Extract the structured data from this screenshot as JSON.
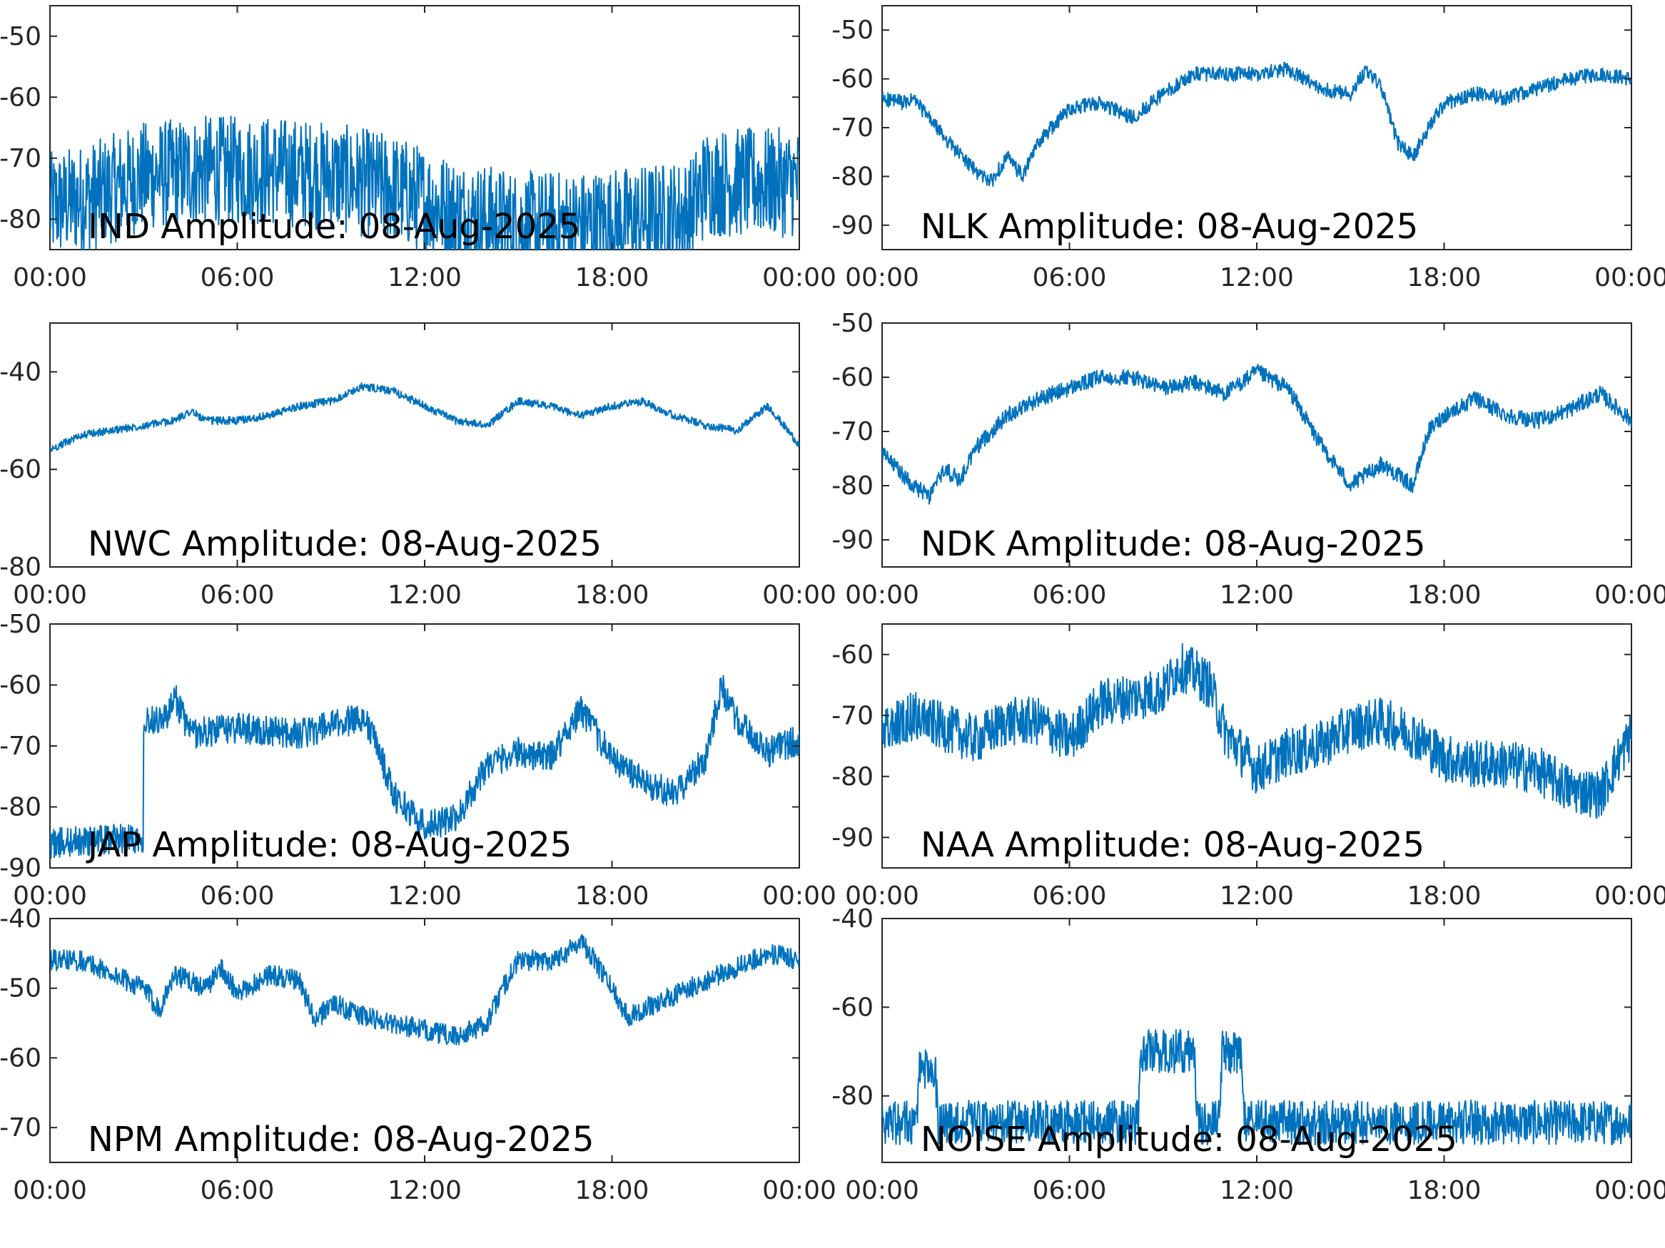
{
  "chart_data": [
    {
      "type": "line",
      "title": "IND Amplitude: 08-Aug-2025",
      "x_tick_labels": [
        "00:00",
        "06:00",
        "12:00",
        "18:00",
        "00:00"
      ],
      "x_ticks_hours": [
        0,
        6,
        12,
        18,
        24
      ],
      "y_tick_labels": [
        "-50",
        "-60",
        "-70",
        "-80"
      ],
      "y_ticks": [
        -50,
        -60,
        -70,
        -80
      ],
      "ylim": [
        -85,
        -45
      ],
      "noise": 9,
      "color": "#0072BD",
      "series": [
        {
          "values": [
            [
              0,
              -78
            ],
            [
              1.5,
              -76
            ],
            [
              3,
              -73
            ],
            [
              5,
              -72
            ],
            [
              7,
              -72
            ],
            [
              9,
              -73
            ],
            [
              11,
              -75
            ],
            [
              13,
              -79
            ],
            [
              15,
              -81
            ],
            [
              17,
              -81
            ],
            [
              19,
              -80
            ],
            [
              20.5,
              -79
            ],
            [
              21,
              -74
            ],
            [
              23,
              -74
            ],
            [
              24,
              -74
            ]
          ]
        }
      ]
    },
    {
      "type": "line",
      "title": "NLK Amplitude: 08-Aug-2025",
      "x_tick_labels": [
        "00:00",
        "06:00",
        "12:00",
        "18:00",
        "00:00"
      ],
      "x_ticks_hours": [
        0,
        6,
        12,
        18,
        24
      ],
      "y_tick_labels": [
        "-50",
        "-60",
        "-70",
        "-80",
        "-90"
      ],
      "y_ticks": [
        -50,
        -60,
        -70,
        -80,
        -90
      ],
      "ylim": [
        -95,
        -45
      ],
      "noise": 1.5,
      "color": "#0072BD",
      "series": [
        {
          "values": [
            [
              0,
              -64
            ],
            [
              0.8,
              -65
            ],
            [
              1,
              -64
            ],
            [
              2,
              -72
            ],
            [
              3,
              -79
            ],
            [
              3.5,
              -81
            ],
            [
              4,
              -76
            ],
            [
              4.5,
              -80
            ],
            [
              5,
              -73
            ],
            [
              6,
              -66
            ],
            [
              7,
              -65
            ],
            [
              8,
              -68
            ],
            [
              9,
              -63
            ],
            [
              10,
              -59
            ],
            [
              11,
              -59
            ],
            [
              12,
              -59
            ],
            [
              13,
              -58
            ],
            [
              14,
              -62
            ],
            [
              15,
              -63
            ],
            [
              15.5,
              -58
            ],
            [
              16,
              -62
            ],
            [
              16.5,
              -73
            ],
            [
              17,
              -76
            ],
            [
              17.5,
              -70
            ],
            [
              18,
              -65
            ],
            [
              19,
              -63
            ],
            [
              20,
              -64
            ],
            [
              21,
              -62
            ],
            [
              22,
              -60
            ],
            [
              23,
              -59
            ],
            [
              24,
              -60
            ]
          ]
        }
      ]
    },
    {
      "type": "line",
      "title": "NWC Amplitude: 08-Aug-2025",
      "x_tick_labels": [
        "00:00",
        "06:00",
        "12:00",
        "18:00",
        "00:00"
      ],
      "x_ticks_hours": [
        0,
        6,
        12,
        18,
        24
      ],
      "y_tick_labels": [
        "-40",
        "-60",
        "-80"
      ],
      "y_ticks": [
        -40,
        -60,
        -80
      ],
      "ylim": [
        -80,
        -30
      ],
      "noise": 0.8,
      "color": "#0072BD",
      "series": [
        {
          "values": [
            [
              0,
              -56
            ],
            [
              1,
              -53
            ],
            [
              2,
              -52
            ],
            [
              3,
              -51
            ],
            [
              4,
              -50
            ],
            [
              4.5,
              -48
            ],
            [
              5,
              -50
            ],
            [
              6,
              -50
            ],
            [
              7,
              -49
            ],
            [
              8,
              -47
            ],
            [
              9,
              -46
            ],
            [
              10,
              -43
            ],
            [
              11,
              -44
            ],
            [
              12,
              -47
            ],
            [
              13,
              -50
            ],
            [
              14,
              -51
            ],
            [
              15,
              -46
            ],
            [
              16,
              -47
            ],
            [
              17,
              -49
            ],
            [
              18,
              -47
            ],
            [
              19,
              -46
            ],
            [
              20,
              -49
            ],
            [
              21,
              -51
            ],
            [
              22,
              -52
            ],
            [
              23,
              -47
            ],
            [
              24,
              -55
            ]
          ]
        }
      ]
    },
    {
      "type": "line",
      "title": "NDK Amplitude: 08-Aug-2025",
      "x_tick_labels": [
        "00:00",
        "06:00",
        "12:00",
        "18:00",
        "00:00"
      ],
      "x_ticks_hours": [
        0,
        6,
        12,
        18,
        24
      ],
      "y_tick_labels": [
        "-50",
        "-60",
        "-70",
        "-80",
        "-90"
      ],
      "y_ticks": [
        -50,
        -60,
        -70,
        -80,
        -90
      ],
      "ylim": [
        -95,
        -50
      ],
      "noise": 1.5,
      "color": "#0072BD",
      "series": [
        {
          "values": [
            [
              0,
              -74
            ],
            [
              1,
              -80
            ],
            [
              1.5,
              -82
            ],
            [
              2,
              -77
            ],
            [
              2.5,
              -79
            ],
            [
              3,
              -73
            ],
            [
              4,
              -67
            ],
            [
              5,
              -64
            ],
            [
              6,
              -62
            ],
            [
              7,
              -60
            ],
            [
              8,
              -60
            ],
            [
              9,
              -62
            ],
            [
              10,
              -61
            ],
            [
              11,
              -63
            ],
            [
              12,
              -59
            ],
            [
              13,
              -62
            ],
            [
              14,
              -72
            ],
            [
              15,
              -80
            ],
            [
              16,
              -76
            ],
            [
              17,
              -80
            ],
            [
              17.5,
              -70
            ],
            [
              18,
              -67
            ],
            [
              19,
              -64
            ],
            [
              20,
              -67
            ],
            [
              21,
              -68
            ],
            [
              22,
              -66
            ],
            [
              23,
              -63
            ],
            [
              24,
              -68
            ]
          ]
        }
      ]
    },
    {
      "type": "line",
      "title": "JAP Amplitude: 08-Aug-2025",
      "x_tick_labels": [
        "00:00",
        "06:00",
        "12:00",
        "18:00",
        "00:00"
      ],
      "x_ticks_hours": [
        0,
        6,
        12,
        18,
        24
      ],
      "y_tick_labels": [
        "-50",
        "-60",
        "-70",
        "-80",
        "-90"
      ],
      "y_ticks": [
        -50,
        -60,
        -70,
        -80,
        -90
      ],
      "ylim": [
        -90,
        -50
      ],
      "noise": 2.5,
      "color": "#0072BD",
      "series": [
        {
          "values": [
            [
              0,
              -86
            ],
            [
              3,
              -85
            ],
            [
              3,
              -66
            ],
            [
              3.8,
              -65
            ],
            [
              4,
              -62
            ],
            [
              4.5,
              -68
            ],
            [
              6,
              -67
            ],
            [
              8,
              -68
            ],
            [
              9.5,
              -66
            ],
            [
              10,
              -65
            ],
            [
              10.5,
              -70
            ],
            [
              11,
              -78
            ],
            [
              12,
              -83
            ],
            [
              13,
              -82
            ],
            [
              14,
              -73
            ],
            [
              15,
              -71
            ],
            [
              16,
              -72
            ],
            [
              17,
              -64
            ],
            [
              18,
              -72
            ],
            [
              19,
              -76
            ],
            [
              20,
              -78
            ],
            [
              21,
              -72
            ],
            [
              21.5,
              -60
            ],
            [
              22,
              -66
            ],
            [
              23,
              -71
            ],
            [
              24,
              -69
            ]
          ]
        }
      ]
    },
    {
      "type": "line",
      "title": "NAA Amplitude: 08-Aug-2025",
      "x_tick_labels": [
        "00:00",
        "06:00",
        "12:00",
        "18:00",
        "00:00"
      ],
      "x_ticks_hours": [
        0,
        6,
        12,
        18,
        24
      ],
      "y_tick_labels": [
        "-60",
        "-70",
        "-80",
        "-90"
      ],
      "y_ticks": [
        -60,
        -70,
        -80,
        -90
      ],
      "ylim": [
        -95,
        -55
      ],
      "noise": 4,
      "color": "#0072BD",
      "series": [
        {
          "values": [
            [
              0,
              -73
            ],
            [
              1,
              -70
            ],
            [
              2,
              -72
            ],
            [
              3,
              -74
            ],
            [
              4,
              -71
            ],
            [
              5,
              -71
            ],
            [
              6,
              -74
            ],
            [
              7,
              -68
            ],
            [
              8,
              -67
            ],
            [
              9,
              -66
            ],
            [
              9.5,
              -62
            ],
            [
              10,
              -63
            ],
            [
              10.5,
              -65
            ],
            [
              11,
              -73
            ],
            [
              12,
              -79
            ],
            [
              13,
              -76
            ],
            [
              14,
              -75
            ],
            [
              15,
              -72
            ],
            [
              16,
              -71
            ],
            [
              17,
              -73
            ],
            [
              18,
              -77
            ],
            [
              19,
              -78
            ],
            [
              20,
              -78
            ],
            [
              21,
              -79
            ],
            [
              22,
              -82
            ],
            [
              23,
              -83
            ],
            [
              24,
              -73
            ]
          ]
        }
      ]
    },
    {
      "type": "line",
      "title": "NPM Amplitude: 08-Aug-2025",
      "x_tick_labels": [
        "00:00",
        "06:00",
        "12:00",
        "18:00",
        "00:00"
      ],
      "x_ticks_hours": [
        0,
        6,
        12,
        18,
        24
      ],
      "y_tick_labels": [
        "-40",
        "-50",
        "-60",
        "-70"
      ],
      "y_ticks": [
        -40,
        -50,
        -60,
        -70
      ],
      "ylim": [
        -75,
        -40
      ],
      "noise": 1.5,
      "color": "#0072BD",
      "series": [
        {
          "values": [
            [
              0,
              -46
            ],
            [
              1,
              -46
            ],
            [
              2,
              -48
            ],
            [
              3,
              -50
            ],
            [
              3.5,
              -53
            ],
            [
              4,
              -48
            ],
            [
              5,
              -50
            ],
            [
              5.5,
              -47
            ],
            [
              6,
              -51
            ],
            [
              7,
              -48
            ],
            [
              8,
              -49
            ],
            [
              8.5,
              -55
            ],
            [
              9,
              -52
            ],
            [
              10,
              -54
            ],
            [
              11,
              -55
            ],
            [
              12,
              -56
            ],
            [
              13,
              -57
            ],
            [
              14,
              -55
            ],
            [
              14.5,
              -50
            ],
            [
              15,
              -46
            ],
            [
              16,
              -46
            ],
            [
              16.5,
              -45
            ],
            [
              17,
              -43
            ],
            [
              18,
              -50
            ],
            [
              18.5,
              -54
            ],
            [
              19,
              -53
            ],
            [
              20,
              -51
            ],
            [
              21,
              -49
            ],
            [
              22,
              -47
            ],
            [
              23,
              -45
            ],
            [
              24,
              -46
            ]
          ]
        }
      ]
    },
    {
      "type": "line",
      "title": "NOISE Amplitude: 08-Aug-2025",
      "x_tick_labels": [
        "00:00",
        "06:00",
        "12:00",
        "18:00",
        "00:00"
      ],
      "x_ticks_hours": [
        0,
        6,
        12,
        18,
        24
      ],
      "y_tick_labels": [
        "-40",
        "-60",
        "-80"
      ],
      "y_ticks": [
        -40,
        -60,
        -80
      ],
      "ylim": [
        -95,
        -40
      ],
      "noise": 5,
      "color": "#0072BD",
      "series": [
        {
          "values": [
            [
              0,
              -86
            ],
            [
              1.1,
              -86
            ],
            [
              1.2,
              -74
            ],
            [
              1.7,
              -74
            ],
            [
              1.8,
              -86
            ],
            [
              8.2,
              -86
            ],
            [
              8.3,
              -70
            ],
            [
              10,
              -70
            ],
            [
              10.1,
              -86
            ],
            [
              10.8,
              -86
            ],
            [
              10.9,
              -70
            ],
            [
              11.5,
              -70
            ],
            [
              11.6,
              -86
            ],
            [
              24,
              -86
            ]
          ]
        }
      ]
    }
  ]
}
